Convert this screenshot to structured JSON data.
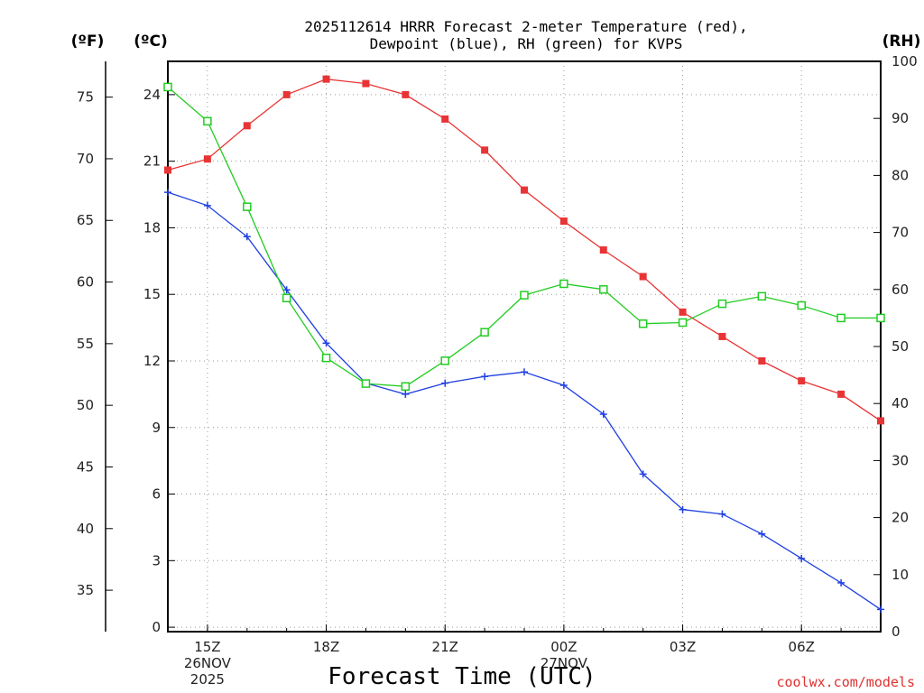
{
  "chart_data": {
    "type": "line",
    "title_lines": [
      "2025112614 HRRR Forecast 2-meter Temperature (red),",
      "Dewpoint (blue), RH (green) for KVPS"
    ],
    "xlabel": "Forecast Time (UTC)",
    "credit": "coolwx.com/models",
    "x_hours": [
      14,
      15,
      16,
      17,
      18,
      19,
      20,
      21,
      22,
      23,
      24,
      25,
      26,
      27,
      28,
      29,
      30,
      31,
      32
    ],
    "x_range": [
      14,
      32
    ],
    "x_ticks": [
      {
        "h": 15,
        "lines": [
          "15Z",
          "26NOV",
          "2025"
        ]
      },
      {
        "h": 18,
        "lines": [
          "18Z"
        ]
      },
      {
        "h": 21,
        "lines": [
          "21Z"
        ]
      },
      {
        "h": 24,
        "lines": [
          "00Z",
          "27NOV"
        ]
      },
      {
        "h": 27,
        "lines": [
          "03Z"
        ]
      },
      {
        "h": 30,
        "lines": [
          "06Z"
        ]
      }
    ],
    "axes": {
      "celsius": {
        "unit_label": "(ºC)",
        "range": [
          -0.2,
          25.5
        ],
        "ticks": [
          "0",
          "3",
          "6",
          "9",
          "12",
          "15",
          "18",
          "21",
          "24"
        ]
      },
      "fahrenheit": {
        "unit_label": "(ºF)",
        "ticks": [
          "35",
          "40",
          "45",
          "50",
          "55",
          "60",
          "65",
          "70",
          "75"
        ]
      },
      "rh": {
        "unit_label": "(RH)",
        "range": [
          0,
          100
        ],
        "ticks": [
          "0",
          "10",
          "20",
          "30",
          "40",
          "50",
          "60",
          "70",
          "80",
          "90",
          "100"
        ]
      }
    },
    "series": [
      {
        "name": "2-meter Temperature",
        "axis": "celsius",
        "color": "#e83434",
        "marker": "filled-square",
        "values": [
          20.6,
          21.1,
          22.6,
          24.0,
          24.7,
          24.5,
          24.0,
          22.9,
          21.5,
          19.7,
          18.3,
          17.0,
          15.8,
          14.2,
          13.1,
          12.0,
          11.1,
          10.5,
          9.3
        ]
      },
      {
        "name": "Dewpoint",
        "axis": "celsius",
        "color": "#2040e0",
        "marker": "plus",
        "values": [
          19.6,
          19.0,
          17.6,
          15.2,
          12.8,
          11.0,
          10.5,
          11.0,
          11.3,
          11.5,
          10.9,
          9.6,
          6.9,
          5.3,
          5.1,
          4.2,
          3.1,
          2.0,
          0.8
        ]
      },
      {
        "name": "Relative Humidity",
        "axis": "rh",
        "color": "#22cc22",
        "marker": "open-square",
        "values": [
          95.5,
          89.5,
          74.5,
          58.5,
          48.0,
          43.5,
          43.0,
          47.5,
          52.5,
          59.0,
          61.0,
          60.0,
          54.0,
          54.2,
          57.5,
          58.8,
          57.2,
          55.0,
          55.0
        ]
      }
    ]
  }
}
